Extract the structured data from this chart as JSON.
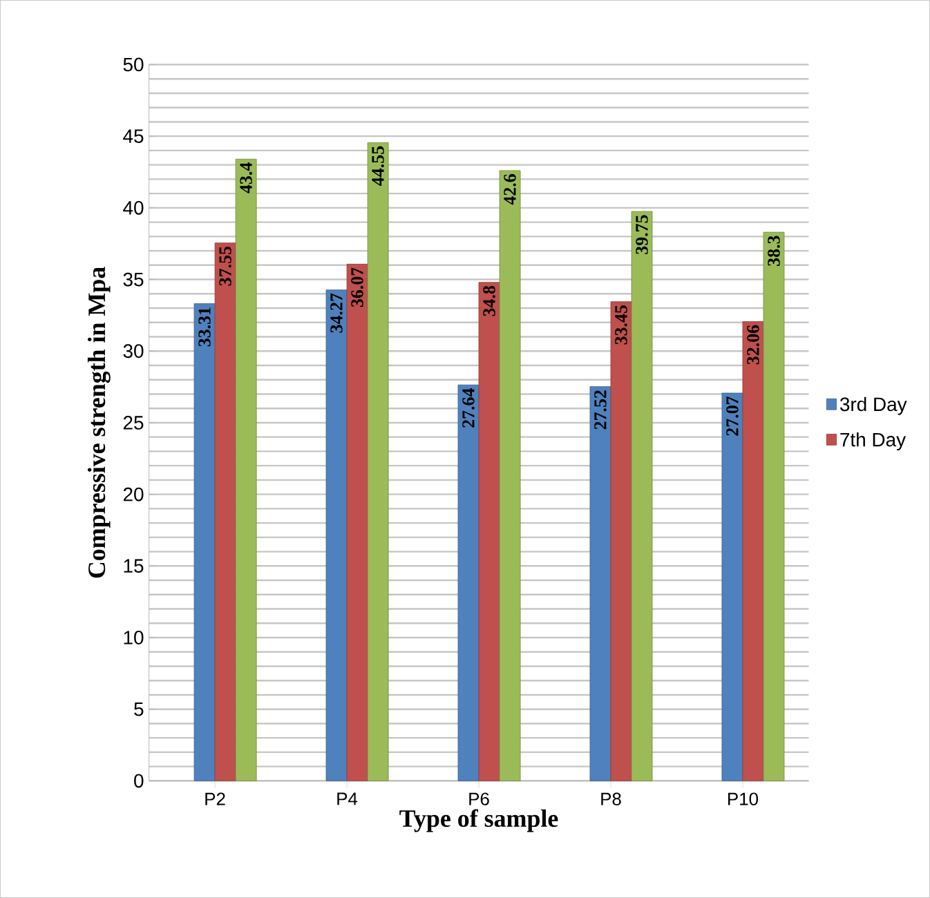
{
  "chart_data": {
    "type": "bar",
    "xlabel": "Type of sample",
    "ylabel": "Compressive strength  in Mpa",
    "categories": [
      "P2",
      "P4",
      "P6",
      "P8",
      "P10"
    ],
    "series": [
      {
        "name": "3rd Day",
        "color": "#4f81bd",
        "values": [
          33.31,
          34.27,
          27.64,
          27.52,
          27.07
        ],
        "value_labels": [
          "33.31",
          "34.27",
          "27.64",
          "27.52",
          "27.07"
        ]
      },
      {
        "name": "7th Day",
        "color": "#c0504d",
        "values": [
          37.55,
          36.07,
          34.8,
          33.45,
          32.06
        ],
        "value_labels": [
          "37.55",
          "36.07",
          "34.8",
          "33.45",
          "32.06"
        ]
      },
      {
        "color": "#9bbb59",
        "values": [
          43.4,
          44.55,
          42.6,
          39.75,
          38.3
        ],
        "value_labels": [
          "43.4",
          "44.55",
          "42.6",
          "39.75",
          "38.3"
        ]
      }
    ],
    "ylim": [
      0,
      50
    ],
    "yticks": [
      0,
      5,
      10,
      15,
      20,
      25,
      30,
      35,
      40,
      45,
      50
    ],
    "grid": "y",
    "legend": "right"
  }
}
